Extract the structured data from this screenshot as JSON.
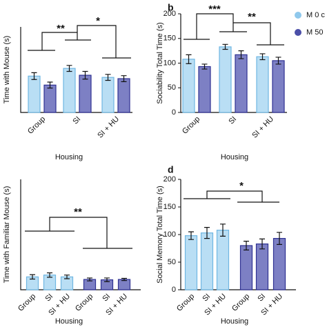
{
  "legend": [
    {
      "name": "M 0 c",
      "color": "#8fc8ec"
    },
    {
      "name": "M 50",
      "color": "#4b4fa8"
    }
  ],
  "chart_data": [
    {
      "type": "grouped-bar",
      "y_label": "Time with Mouse (s)",
      "x_label": "Housing",
      "categories": [
        "Group",
        "SI",
        "SI + HU"
      ],
      "series": [
        {
          "color": "#b9def4",
          "edge": "#6fb6e2",
          "values": [
            85,
            103,
            82
          ],
          "errors": [
            8,
            7,
            7
          ]
        },
        {
          "color": "#7d80c4",
          "edge": "#2e3192",
          "values": [
            64,
            87,
            79
          ],
          "errors": [
            7,
            9,
            7
          ]
        }
      ],
      "ylim": [
        0,
        200
      ],
      "yticks": [],
      "annotations": [
        "**",
        "*"
      ]
    },
    {
      "type": "grouped-bar",
      "panel": "b",
      "y_label": "Sociability Total Time (s)",
      "x_label": "Housing",
      "categories": [
        "Group",
        "SI",
        "SI + HU"
      ],
      "series": [
        {
          "color": "#b9def4",
          "edge": "#6fb6e2",
          "values": [
            108,
            133,
            113
          ],
          "errors": [
            9,
            5,
            6
          ]
        },
        {
          "color": "#7d80c4",
          "edge": "#2e3192",
          "values": [
            93,
            117,
            105
          ],
          "errors": [
            5,
            8,
            7
          ]
        }
      ],
      "ylim": [
        0,
        200
      ],
      "yticks": [
        0,
        50,
        100,
        150,
        200
      ],
      "annotations": [
        "***",
        "**"
      ]
    },
    {
      "type": "bar",
      "y_label": "Time with Familiar Mouse (s)",
      "x_label": "Housing",
      "categories": [
        "Group",
        "SI",
        "SI + HU",
        "Group",
        "SI",
        "SI + HU"
      ],
      "values": [
        35,
        40,
        35,
        28,
        27,
        28
      ],
      "errors": [
        6,
        6,
        5,
        4,
        5,
        3
      ],
      "colors": [
        "#b9def4",
        "#b9def4",
        "#b9def4",
        "#7d80c4",
        "#7d80c4",
        "#7d80c4"
      ],
      "edges": [
        "#6fb6e2",
        "#6fb6e2",
        "#6fb6e2",
        "#2e3192",
        "#2e3192",
        "#2e3192"
      ],
      "ylim": [
        0,
        300
      ],
      "yticks": [],
      "annotations": [
        "**"
      ]
    },
    {
      "type": "bar",
      "panel": "d",
      "y_label": "Social Memory Total Time (s)",
      "x_label": "Housing",
      "categories": [
        "Group",
        "SI",
        "SI + HU",
        "Group",
        "SI",
        "SI + HU"
      ],
      "values": [
        98,
        103,
        108,
        80,
        83,
        93
      ],
      "errors": [
        7,
        10,
        11,
        8,
        9,
        11
      ],
      "colors": [
        "#b9def4",
        "#b9def4",
        "#b9def4",
        "#7d80c4",
        "#7d80c4",
        "#7d80c4"
      ],
      "edges": [
        "#6fb6e2",
        "#6fb6e2",
        "#6fb6e2",
        "#2e3192",
        "#2e3192",
        "#2e3192"
      ],
      "ylim": [
        0,
        200
      ],
      "yticks": [
        0,
        50,
        100,
        150,
        200
      ],
      "annotations": [
        "*"
      ]
    }
  ]
}
